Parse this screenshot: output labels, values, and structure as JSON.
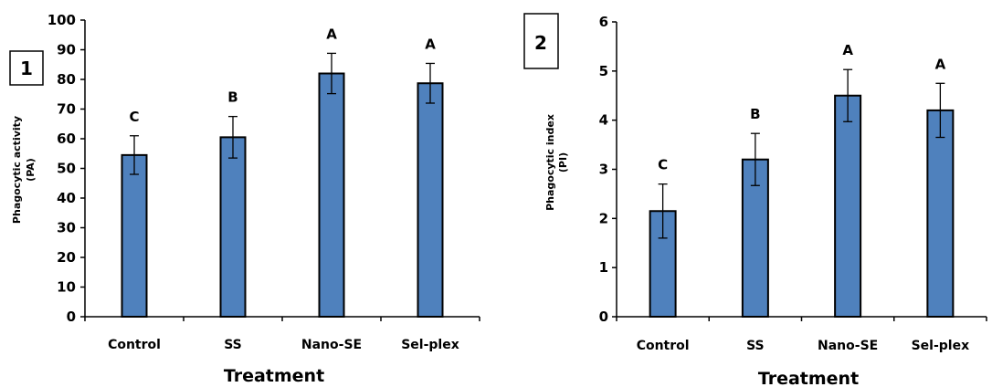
{
  "colors": {
    "bar_fill": "#4f81bd",
    "bar_stroke": "#000000",
    "axis": "#000000"
  },
  "chart_data": [
    {
      "type": "bar",
      "panel_label": "1",
      "categories": [
        "Control",
        "SS",
        "Nano-SE",
        "Sel-plex"
      ],
      "values": [
        54.5,
        60.5,
        82,
        78.7
      ],
      "errors": [
        6.5,
        7,
        6.8,
        6.7
      ],
      "significance": [
        "C",
        "B",
        "A",
        "A"
      ],
      "xlabel": "Treatment",
      "ylabel_line1": "Phagocytic activity",
      "ylabel_line2": "(PA)",
      "ylim": [
        0,
        100
      ],
      "yticks": [
        0,
        10,
        20,
        30,
        40,
        50,
        60,
        70,
        80,
        90,
        100
      ],
      "grid": false,
      "legend": "none"
    },
    {
      "type": "bar",
      "panel_label": "2",
      "categories": [
        "Control",
        "SS",
        "Nano-SE",
        "Sel-plex"
      ],
      "values": [
        2.15,
        3.2,
        4.5,
        4.2
      ],
      "errors": [
        0.55,
        0.53,
        0.53,
        0.55
      ],
      "significance": [
        "C",
        "B",
        "A",
        "A"
      ],
      "xlabel": "Treatment",
      "ylabel_line1": "Phagocytic index",
      "ylabel_line2": "(PI)",
      "ylim": [
        0,
        6
      ],
      "yticks": [
        0,
        1,
        2,
        3,
        4,
        5,
        6
      ],
      "grid": false,
      "legend": "none"
    }
  ]
}
